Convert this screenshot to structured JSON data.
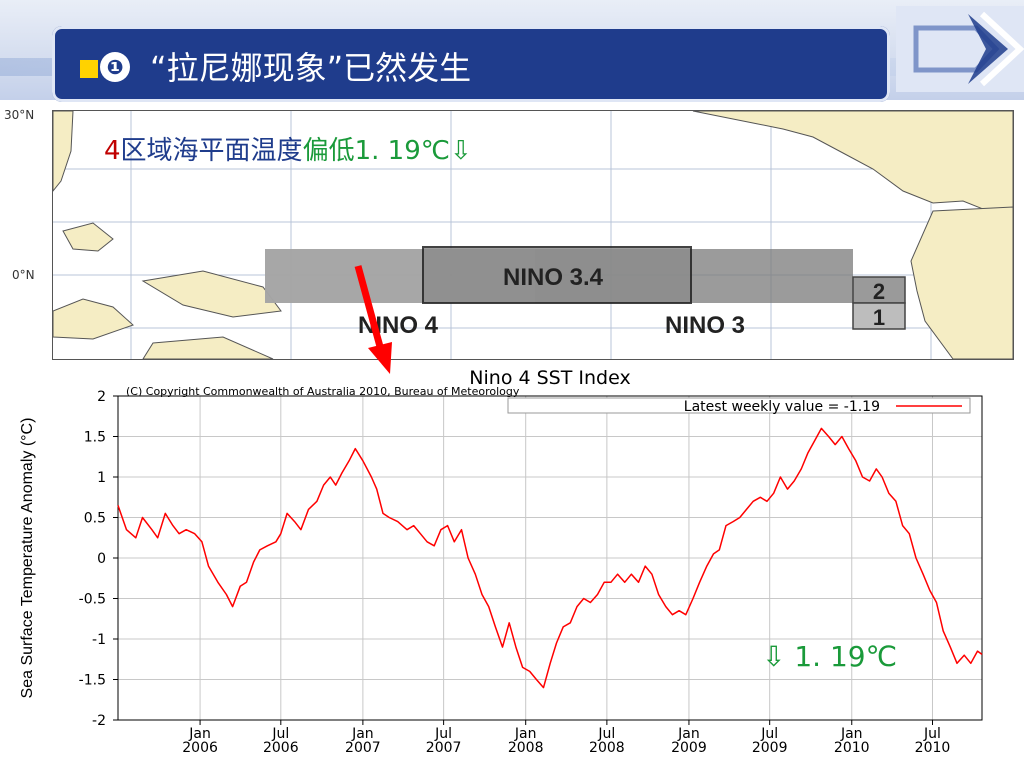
{
  "slide": {
    "title_bullet_num": "❶",
    "title": "“拉尼娜现象”已然发生",
    "map_caption": {
      "region": "4",
      "text": "区域海平面温度",
      "state": "偏低",
      "value": "1. 19℃⇩"
    },
    "drop_label": "⇩ 1. 19℃",
    "colors": {
      "title_bg": "#1f3c8c",
      "accent_yellow": "#ffd200",
      "caption_green": "#1a9a3a",
      "caption_red": "#c00000",
      "series": "#ff0000"
    }
  },
  "map": {
    "lat_labels": [
      "30°N",
      "0°N"
    ],
    "regions": [
      "NINO 3.4",
      "NINO 4",
      "NINO 3",
      "2",
      "1"
    ]
  },
  "chart_data": {
    "type": "line",
    "title": "Nino 4 SST Index",
    "copyright": "(C) Copyright Commonwealth of Australia 2010, Bureau of Meteorology",
    "legend": "Latest weekly value = -1.19",
    "legend_position": "top-right",
    "ylabel": "Sea Surface Temperature Anomaly (°C)",
    "xlabel": "",
    "ylim": [
      -2,
      2
    ],
    "yticks": [
      2,
      1.5,
      1,
      0.5,
      0,
      -0.5,
      -1,
      -1.5,
      -2
    ],
    "ytick_labels": [
      "2",
      "1.5",
      "1",
      "0.5",
      "0",
      "-0.5",
      "-1",
      "-1.5",
      "-2"
    ],
    "xlim": [
      "2005-07-01",
      "2010-10-20"
    ],
    "grid": true,
    "xticks": [
      {
        "date": "2006-01-01",
        "line1": "Jan",
        "line2": "2006"
      },
      {
        "date": "2006-07-01",
        "line1": "Jul",
        "line2": "2006"
      },
      {
        "date": "2007-01-01",
        "line1": "Jan",
        "line2": "2007"
      },
      {
        "date": "2007-07-01",
        "line1": "Jul",
        "line2": "2007"
      },
      {
        "date": "2008-01-01",
        "line1": "Jan",
        "line2": "2008"
      },
      {
        "date": "2008-07-01",
        "line1": "Jul",
        "line2": "2008"
      },
      {
        "date": "2009-01-01",
        "line1": "Jan",
        "line2": "2009"
      },
      {
        "date": "2009-07-01",
        "line1": "Jul",
        "line2": "2009"
      },
      {
        "date": "2010-01-01",
        "line1": "Jan",
        "line2": "2010"
      },
      {
        "date": "2010-07-01",
        "line1": "Jul",
        "line2": "2010"
      }
    ],
    "series": [
      {
        "points": [
          [
            "2005-07-01",
            0.65
          ],
          [
            "2005-07-20",
            0.35
          ],
          [
            "2005-08-10",
            0.25
          ],
          [
            "2005-08-25",
            0.5
          ],
          [
            "2005-09-15",
            0.35
          ],
          [
            "2005-09-28",
            0.25
          ],
          [
            "2005-10-15",
            0.55
          ],
          [
            "2005-11-01",
            0.4
          ],
          [
            "2005-11-15",
            0.3
          ],
          [
            "2005-12-01",
            0.35
          ],
          [
            "2005-12-20",
            0.3
          ],
          [
            "2006-01-05",
            0.2
          ],
          [
            "2006-01-20",
            -0.1
          ],
          [
            "2006-02-10",
            -0.3
          ],
          [
            "2006-03-01",
            -0.45
          ],
          [
            "2006-03-15",
            -0.6
          ],
          [
            "2006-04-01",
            -0.35
          ],
          [
            "2006-04-15",
            -0.3
          ],
          [
            "2006-05-01",
            -0.05
          ],
          [
            "2006-05-15",
            0.1
          ],
          [
            "2006-06-01",
            0.15
          ],
          [
            "2006-06-20",
            0.2
          ],
          [
            "2006-07-01",
            0.3
          ],
          [
            "2006-07-15",
            0.55
          ],
          [
            "2006-08-01",
            0.45
          ],
          [
            "2006-08-15",
            0.35
          ],
          [
            "2006-09-01",
            0.6
          ],
          [
            "2006-09-20",
            0.7
          ],
          [
            "2006-10-05",
            0.9
          ],
          [
            "2006-10-20",
            1.0
          ],
          [
            "2006-11-01",
            0.9
          ],
          [
            "2006-11-15",
            1.05
          ],
          [
            "2006-12-01",
            1.2
          ],
          [
            "2006-12-15",
            1.35
          ],
          [
            "2007-01-01",
            1.2
          ],
          [
            "2007-01-20",
            1.0
          ],
          [
            "2007-02-01",
            0.85
          ],
          [
            "2007-02-15",
            0.55
          ],
          [
            "2007-03-01",
            0.5
          ],
          [
            "2007-03-20",
            0.45
          ],
          [
            "2007-04-10",
            0.35
          ],
          [
            "2007-04-25",
            0.4
          ],
          [
            "2007-05-10",
            0.3
          ],
          [
            "2007-05-25",
            0.2
          ],
          [
            "2007-06-10",
            0.15
          ],
          [
            "2007-06-25",
            0.35
          ],
          [
            "2007-07-10",
            0.4
          ],
          [
            "2007-07-25",
            0.2
          ],
          [
            "2007-08-10",
            0.35
          ],
          [
            "2007-08-25",
            0.0
          ],
          [
            "2007-09-10",
            -0.2
          ],
          [
            "2007-09-25",
            -0.45
          ],
          [
            "2007-10-10",
            -0.6
          ],
          [
            "2007-10-25",
            -0.85
          ],
          [
            "2007-11-10",
            -1.1
          ],
          [
            "2007-11-25",
            -0.8
          ],
          [
            "2007-12-10",
            -1.1
          ],
          [
            "2007-12-25",
            -1.35
          ],
          [
            "2008-01-10",
            -1.4
          ],
          [
            "2008-01-25",
            -1.5
          ],
          [
            "2008-02-10",
            -1.6
          ],
          [
            "2008-02-25",
            -1.3
          ],
          [
            "2008-03-10",
            -1.05
          ],
          [
            "2008-03-25",
            -0.85
          ],
          [
            "2008-04-10",
            -0.8
          ],
          [
            "2008-04-25",
            -0.6
          ],
          [
            "2008-05-10",
            -0.5
          ],
          [
            "2008-05-25",
            -0.55
          ],
          [
            "2008-06-10",
            -0.45
          ],
          [
            "2008-06-25",
            -0.3
          ],
          [
            "2008-07-10",
            -0.3
          ],
          [
            "2008-07-25",
            -0.2
          ],
          [
            "2008-08-10",
            -0.3
          ],
          [
            "2008-08-25",
            -0.2
          ],
          [
            "2008-09-10",
            -0.3
          ],
          [
            "2008-09-25",
            -0.1
          ],
          [
            "2008-10-10",
            -0.2
          ],
          [
            "2008-10-25",
            -0.45
          ],
          [
            "2008-11-10",
            -0.6
          ],
          [
            "2008-11-25",
            -0.7
          ],
          [
            "2008-12-10",
            -0.65
          ],
          [
            "2008-12-25",
            -0.7
          ],
          [
            "2009-01-10",
            -0.5
          ],
          [
            "2009-01-25",
            -0.3
          ],
          [
            "2009-02-10",
            -0.1
          ],
          [
            "2009-02-25",
            0.05
          ],
          [
            "2009-03-10",
            0.1
          ],
          [
            "2009-03-25",
            0.4
          ],
          [
            "2009-04-10",
            0.45
          ],
          [
            "2009-04-25",
            0.5
          ],
          [
            "2009-05-10",
            0.6
          ],
          [
            "2009-05-25",
            0.7
          ],
          [
            "2009-06-10",
            0.75
          ],
          [
            "2009-06-25",
            0.7
          ],
          [
            "2009-07-10",
            0.8
          ],
          [
            "2009-07-25",
            1.0
          ],
          [
            "2009-08-10",
            0.85
          ],
          [
            "2009-08-25",
            0.95
          ],
          [
            "2009-09-10",
            1.1
          ],
          [
            "2009-09-25",
            1.3
          ],
          [
            "2009-10-10",
            1.45
          ],
          [
            "2009-10-25",
            1.6
          ],
          [
            "2009-11-10",
            1.5
          ],
          [
            "2009-11-25",
            1.4
          ],
          [
            "2009-12-10",
            1.5
          ],
          [
            "2009-12-25",
            1.35
          ],
          [
            "2010-01-10",
            1.2
          ],
          [
            "2010-01-25",
            1.0
          ],
          [
            "2010-02-10",
            0.95
          ],
          [
            "2010-02-25",
            1.1
          ],
          [
            "2010-03-10",
            1.0
          ],
          [
            "2010-03-25",
            0.8
          ],
          [
            "2010-04-10",
            0.7
          ],
          [
            "2010-04-25",
            0.4
          ],
          [
            "2010-05-10",
            0.3
          ],
          [
            "2010-05-25",
            0.0
          ],
          [
            "2010-06-10",
            -0.2
          ],
          [
            "2010-06-25",
            -0.4
          ],
          [
            "2010-07-10",
            -0.55
          ],
          [
            "2010-07-25",
            -0.9
          ],
          [
            "2010-08-10",
            -1.1
          ],
          [
            "2010-08-25",
            -1.3
          ],
          [
            "2010-09-10",
            -1.2
          ],
          [
            "2010-09-25",
            -1.3
          ],
          [
            "2010-10-10",
            -1.15
          ],
          [
            "2010-10-20",
            -1.19
          ]
        ]
      }
    ]
  }
}
